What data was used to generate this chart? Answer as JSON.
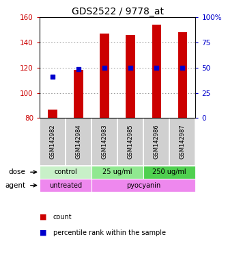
{
  "title": "GDS2522 / 9778_at",
  "samples": [
    "GSM142982",
    "GSM142984",
    "GSM142983",
    "GSM142985",
    "GSM142986",
    "GSM142987"
  ],
  "bar_values": [
    87,
    118,
    147,
    146,
    154,
    148
  ],
  "percentile_values": [
    113,
    119,
    120,
    120,
    120,
    120
  ],
  "bar_color": "#cc0000",
  "percentile_color": "#0000cc",
  "ylim_left": [
    80,
    160
  ],
  "ylim_right": [
    0,
    100
  ],
  "yticks_left": [
    80,
    100,
    120,
    140,
    160
  ],
  "yticks_right": [
    0,
    25,
    50,
    75,
    100
  ],
  "ytick_labels_right": [
    "0",
    "25",
    "50",
    "75",
    "100%"
  ],
  "dose_labels": [
    {
      "text": "control",
      "span": [
        0,
        2
      ],
      "color": "#c8f0c8"
    },
    {
      "text": "25 ug/ml",
      "span": [
        2,
        4
      ],
      "color": "#90e890"
    },
    {
      "text": "250 ug/ml",
      "span": [
        4,
        6
      ],
      "color": "#50d050"
    }
  ],
  "agent_labels": [
    {
      "text": "untreated",
      "span": [
        0,
        2
      ],
      "color": "#ee88ee"
    },
    {
      "text": "pyocyanin",
      "span": [
        2,
        6
      ],
      "color": "#ee88ee"
    }
  ],
  "dose_label": "dose",
  "agent_label": "agent",
  "legend_count": "count",
  "legend_percentile": "percentile rank within the sample",
  "title_fontsize": 10,
  "axis_label_color_left": "#cc0000",
  "axis_label_color_right": "#0000cc",
  "grid_color": "#888888",
  "sample_box_color": "#d0d0d0",
  "bar_width": 0.35
}
